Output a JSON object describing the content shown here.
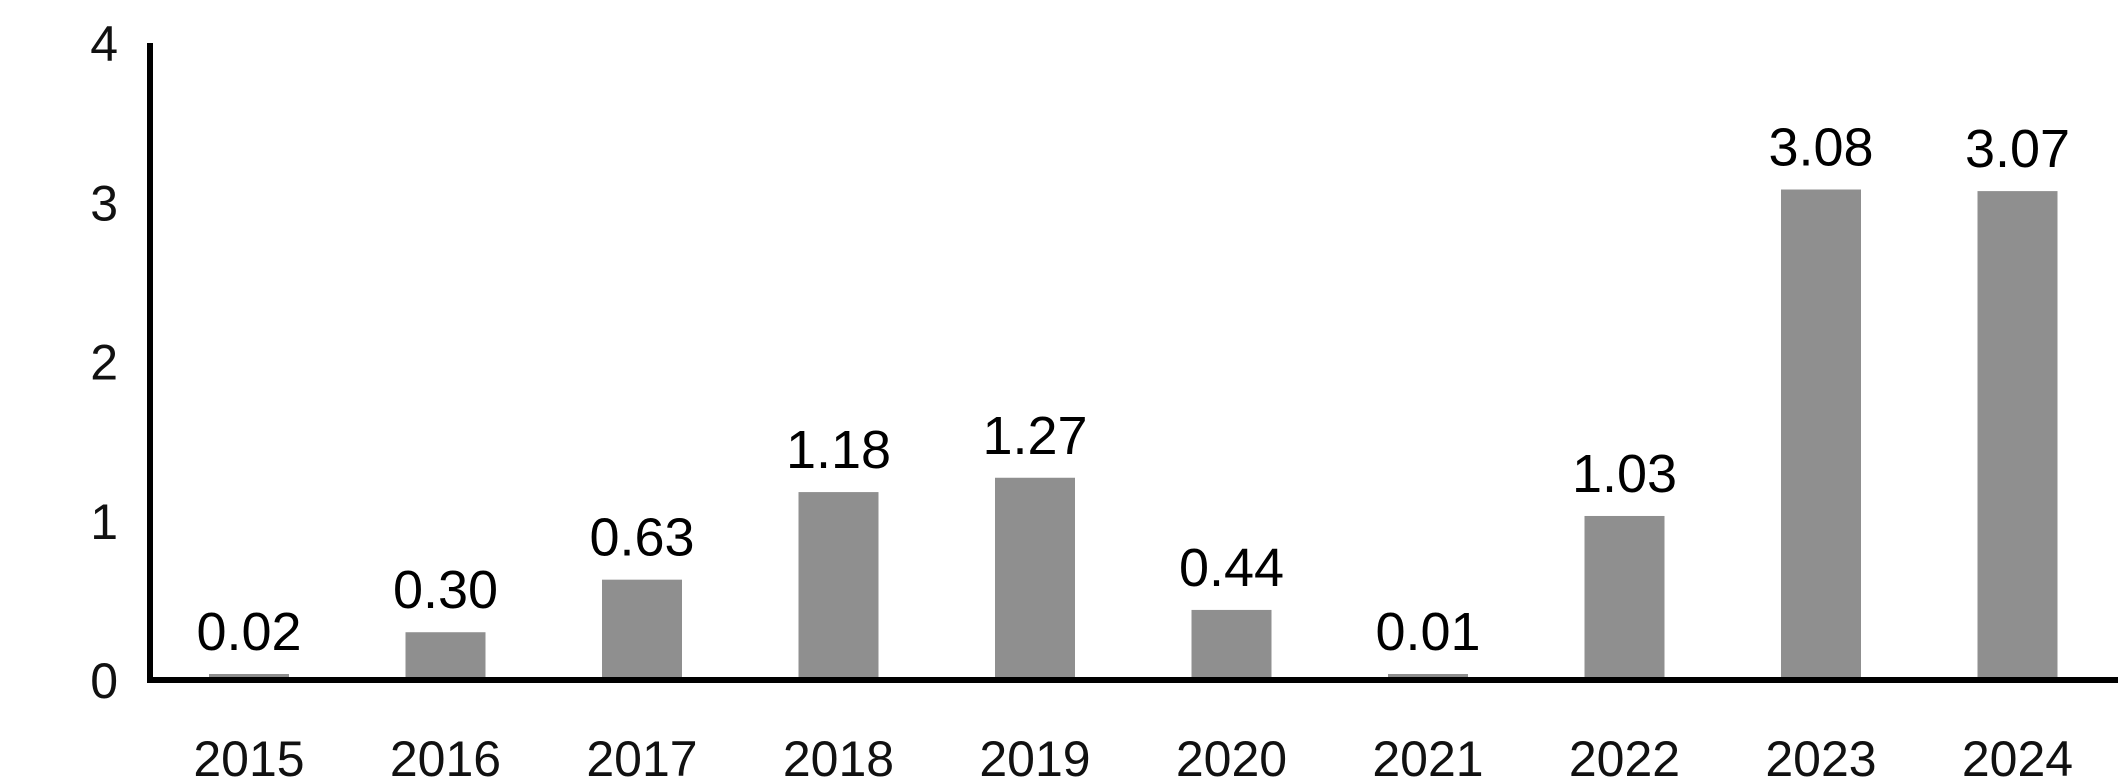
{
  "chart_data": {
    "type": "bar",
    "categories": [
      "2015",
      "2016",
      "2017",
      "2018",
      "2019",
      "2020",
      "2021",
      "2022",
      "2023",
      "2024"
    ],
    "values": [
      0.02,
      0.3,
      0.63,
      1.18,
      1.27,
      0.44,
      0.01,
      1.03,
      3.08,
      3.07
    ],
    "value_labels": [
      "0.02",
      "0.30",
      "0.63",
      "1.18",
      "1.27",
      "0.44",
      "0.01",
      "1.03",
      "3.08",
      "3.07"
    ],
    "y_ticks": [
      "0",
      "1",
      "2",
      "3",
      "4"
    ],
    "ylim": [
      0,
      4
    ],
    "title": "",
    "xlabel": "",
    "ylabel": "",
    "grid": false,
    "legend": "none",
    "bar_color": "#8f8f8f",
    "axis_color": "#000000"
  }
}
